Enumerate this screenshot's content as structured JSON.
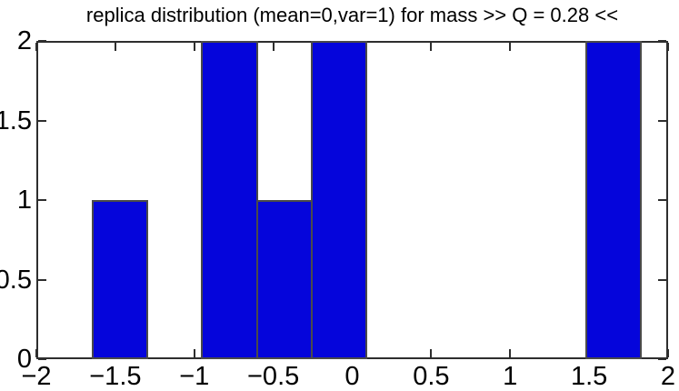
{
  "figure": {
    "background": "#ffffff"
  },
  "chart_data": {
    "type": "bar",
    "subtype": "histogram",
    "title": "replica distribution (mean=0,var=1) for mass >> Q = 0.28 <<",
    "xlabel": "",
    "ylabel": "",
    "bin_edges": [
      -1.644,
      -1.297,
      -0.95,
      -0.602,
      -0.255,
      0.092,
      0.439,
      0.787,
      1.134,
      1.481,
      1.828
    ],
    "counts": [
      1,
      0,
      2,
      1,
      2,
      0,
      0,
      0,
      0,
      2
    ],
    "total_samples": 8,
    "xlim": [
      -2,
      2
    ],
    "ylim": [
      0,
      2
    ],
    "x_ticks": [
      -2,
      -1.5,
      -1,
      -0.5,
      0,
      0.5,
      1,
      1.5,
      2
    ],
    "x_tick_labels": [
      "−2",
      "−1.5",
      "−1",
      "−0.5",
      "0",
      "0.5",
      "1",
      "1.5",
      "2"
    ],
    "y_ticks": [
      0,
      0.5,
      1,
      1.5,
      2
    ],
    "y_tick_labels": [
      "0",
      "0.5",
      "1",
      "1.5",
      "2"
    ],
    "grid": false,
    "legend": null,
    "box": true,
    "tick_direction": "in",
    "bar_color": "#0505DB",
    "bar_edge_color": "#4a4a4a",
    "axis_color": "#2e2e2e",
    "text_color": "#000000"
  }
}
